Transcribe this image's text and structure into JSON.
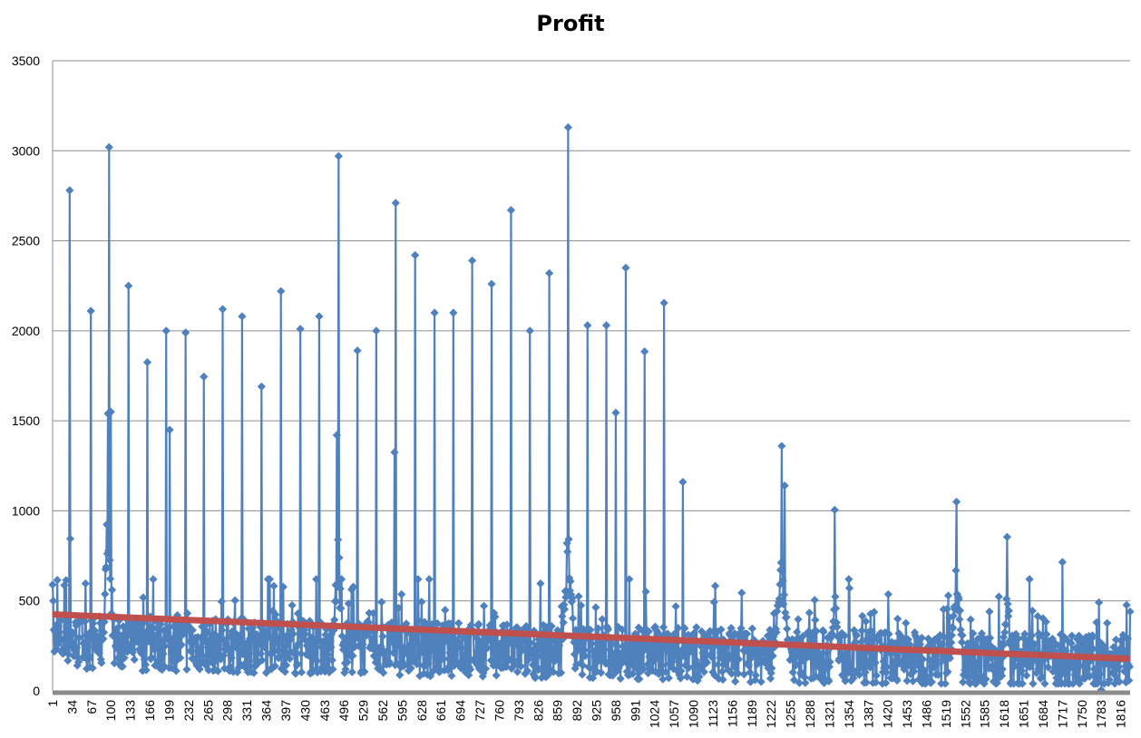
{
  "chart_data": {
    "type": "line",
    "title": "Profit",
    "xlabel": "",
    "ylabel": "",
    "ylim": [
      0,
      3500
    ],
    "xlim": [
      1,
      1832
    ],
    "y_ticks": [
      "0",
      "500",
      "1000",
      "1500",
      "2000",
      "2500",
      "3000",
      "3500"
    ],
    "x_ticks": [
      "1",
      "34",
      "67",
      "100",
      "133",
      "166",
      "199",
      "232",
      "265",
      "298",
      "331",
      "364",
      "397",
      "430",
      "463",
      "496",
      "529",
      "562",
      "595",
      "628",
      "661",
      "694",
      "727",
      "760",
      "793",
      "826",
      "859",
      "892",
      "925",
      "958",
      "991",
      "1024",
      "1057",
      "1090",
      "1123",
      "1156",
      "1189",
      "1222",
      "1255",
      "1288",
      "1321",
      "1354",
      "1387",
      "1420",
      "1453",
      "1486",
      "1519",
      "1552",
      "1585",
      "1618",
      "1651",
      "1684",
      "1717",
      "1750",
      "1783",
      "1816"
    ],
    "grid": true,
    "legend": "none",
    "series": [
      {
        "marker": "diamond",
        "color": "#4f81bd",
        "notable_points": [
          {
            "x": 1,
            "y": 590
          },
          {
            "x": 2,
            "y": 500
          },
          {
            "x": 30,
            "y": 2780
          },
          {
            "x": 31,
            "y": 845
          },
          {
            "x": 66,
            "y": 2110
          },
          {
            "x": 97,
            "y": 3020
          },
          {
            "x": 95,
            "y": 1540
          },
          {
            "x": 100,
            "y": 1550
          },
          {
            "x": 130,
            "y": 2250
          },
          {
            "x": 162,
            "y": 1825
          },
          {
            "x": 194,
            "y": 2000
          },
          {
            "x": 200,
            "y": 1450
          },
          {
            "x": 227,
            "y": 1990
          },
          {
            "x": 258,
            "y": 1745
          },
          {
            "x": 290,
            "y": 2120
          },
          {
            "x": 323,
            "y": 2080
          },
          {
            "x": 356,
            "y": 1690
          },
          {
            "x": 389,
            "y": 2220
          },
          {
            "x": 422,
            "y": 2010
          },
          {
            "x": 454,
            "y": 2080
          },
          {
            "x": 487,
            "y": 2970
          },
          {
            "x": 484,
            "y": 1420
          },
          {
            "x": 519,
            "y": 1890
          },
          {
            "x": 551,
            "y": 2000
          },
          {
            "x": 584,
            "y": 2710
          },
          {
            "x": 582,
            "y": 1325
          },
          {
            "x": 617,
            "y": 2420
          },
          {
            "x": 650,
            "y": 2100
          },
          {
            "x": 682,
            "y": 2100
          },
          {
            "x": 714,
            "y": 2390
          },
          {
            "x": 747,
            "y": 2260
          },
          {
            "x": 780,
            "y": 2670
          },
          {
            "x": 812,
            "y": 2000
          },
          {
            "x": 845,
            "y": 2320
          },
          {
            "x": 877,
            "y": 3130
          },
          {
            "x": 910,
            "y": 2030
          },
          {
            "x": 942,
            "y": 2030
          },
          {
            "x": 958,
            "y": 1545
          },
          {
            "x": 975,
            "y": 2350
          },
          {
            "x": 1007,
            "y": 1885
          },
          {
            "x": 1040,
            "y": 2155
          },
          {
            "x": 1072,
            "y": 1160
          },
          {
            "x": 1240,
            "y": 1360
          },
          {
            "x": 1245,
            "y": 1140
          },
          {
            "x": 1330,
            "y": 1005
          },
          {
            "x": 1537,
            "y": 1050
          },
          {
            "x": 1623,
            "y": 855
          },
          {
            "x": 1717,
            "y": 715
          },
          {
            "x": 1783,
            "y": 5
          },
          {
            "x": 1832,
            "y": 440
          }
        ],
        "baseline_range": [
          80,
          500
        ]
      }
    ],
    "trendline": {
      "color": "#c0504d",
      "start": {
        "x": 1,
        "y": 425
      },
      "end": {
        "x": 1832,
        "y": 178
      }
    }
  }
}
